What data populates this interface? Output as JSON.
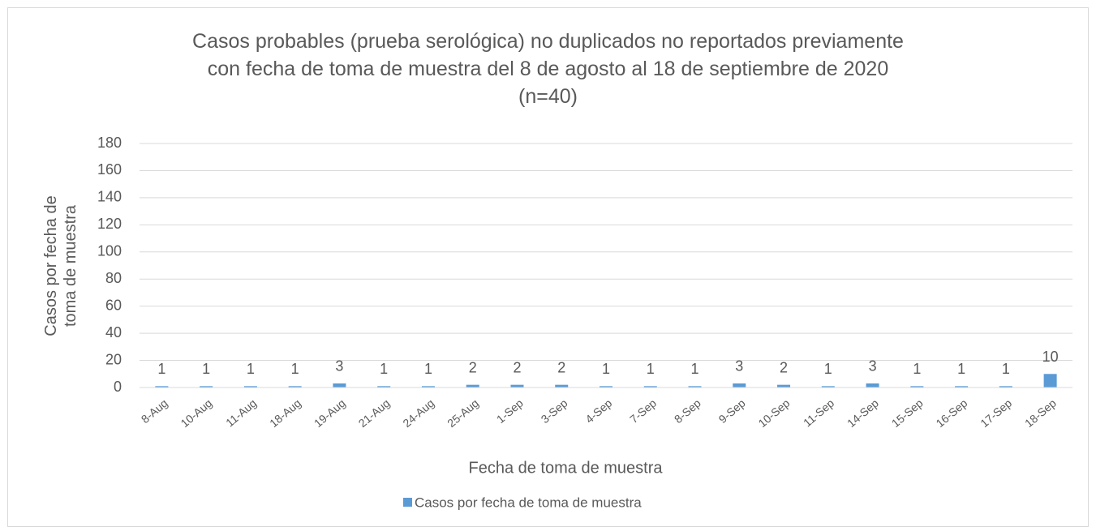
{
  "chart_data": {
    "type": "bar",
    "title": [
      "Casos probables (prueba serológica) no duplicados no reportados previamente",
      "con fecha de toma de muestra del 8 de agosto al 18 de septiembre de 2020",
      "(n=40)"
    ],
    "x_label": "Fecha de toma de muestra",
    "y_label": "Casos por fecha de toma de muestra",
    "categories": [
      "8-Aug",
      "10-Aug",
      "11-Aug",
      "18-Aug",
      "19-Aug",
      "21-Aug",
      "24-Aug",
      "25-Aug",
      "1-Sep",
      "3-Sep",
      "4-Sep",
      "7-Sep",
      "8-Sep",
      "9-Sep",
      "10-Sep",
      "11-Sep",
      "14-Sep",
      "15-Sep",
      "16-Sep",
      "17-Sep",
      "18-Sep"
    ],
    "series": [
      {
        "name": "Casos por fecha de toma de muestra",
        "color": "#5b9bd5",
        "values": [
          1,
          1,
          1,
          1,
          3,
          1,
          1,
          2,
          2,
          2,
          1,
          1,
          1,
          3,
          2,
          1,
          3,
          1,
          1,
          1,
          10
        ]
      }
    ],
    "ylim": [
      0,
      180
    ],
    "yticks": [
      0,
      20,
      40,
      60,
      80,
      100,
      120,
      140,
      160,
      180
    ],
    "grid": true,
    "legend": "bottom"
  }
}
